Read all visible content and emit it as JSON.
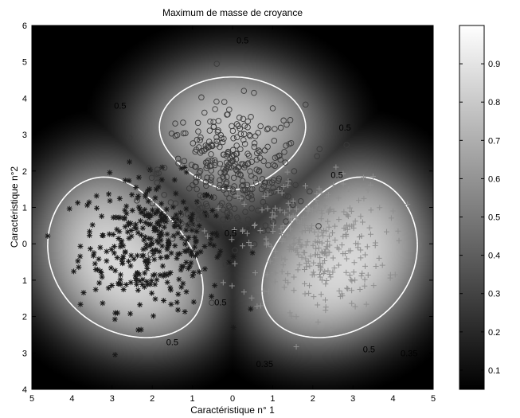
{
  "chart_data": {
    "type": "scatter",
    "title": "Maximum de masse de croyance",
    "xlabel": "Caractéristique n° 1",
    "ylabel": "Caractéristique n°2",
    "xlim": [
      -5,
      5
    ],
    "ylim": [
      -4,
      6
    ],
    "x_ticks": [
      -5,
      -4,
      -3,
      -2,
      -1,
      0,
      1,
      2,
      3,
      4,
      5
    ],
    "x_tick_labels": [
      "5",
      "4",
      "3",
      "2",
      "1",
      "0",
      "1",
      "2",
      "3",
      "4",
      "5"
    ],
    "y_ticks": [
      6,
      5,
      4,
      3,
      2,
      1,
      0,
      -1,
      -2,
      -3,
      -4
    ],
    "y_tick_labels": [
      "6",
      "5",
      "4",
      "3",
      "2",
      "1",
      "0",
      "1",
      "2",
      "3",
      "4"
    ],
    "background": "grayscale map of maximum belief mass (dark = low, white = high)",
    "grid": false,
    "colorbar": {
      "min": 0.05,
      "max": 1.0,
      "ticks": [
        0.1,
        0.2,
        0.3,
        0.4,
        0.5,
        0.6,
        0.7,
        0.8,
        0.9
      ],
      "tick_labels": [
        "0.1",
        "0.2",
        "0.3",
        "0.4",
        "0.5",
        "0.6",
        "0.7",
        "0.8",
        "0.9"
      ]
    },
    "class_centers": [
      {
        "marker": "asterisk",
        "color": "#1a1a1a",
        "center": [
          -2.0,
          0.0
        ],
        "spread": [
          0.9,
          0.9
        ],
        "count": 350
      },
      {
        "marker": "circle",
        "color": "#3a3a3a",
        "center": [
          0.0,
          2.0
        ],
        "spread": [
          0.9,
          0.9
        ],
        "count": 330
      },
      {
        "marker": "plus",
        "color": "#8e8e8e",
        "center": [
          2.0,
          0.0
        ],
        "spread": [
          0.9,
          0.9
        ],
        "count": 330
      }
    ],
    "contour_labels": [
      {
        "text": "0.5",
        "x": 0.25,
        "y": 5.6
      },
      {
        "text": "0.5",
        "x": -2.8,
        "y": 3.8
      },
      {
        "text": "0.5",
        "x": 2.8,
        "y": 3.2
      },
      {
        "text": "0.5",
        "x": 2.6,
        "y": 1.9
      },
      {
        "text": "0.5",
        "x": -0.05,
        "y": 0.3
      },
      {
        "text": "0.5",
        "x": -0.3,
        "y": -1.6
      },
      {
        "text": "0.5",
        "x": -1.5,
        "y": -2.7
      },
      {
        "text": "0.5",
        "x": 3.4,
        "y": -2.9
      },
      {
        "text": "0.35",
        "x": 0.8,
        "y": -3.3
      },
      {
        "text": "0.35",
        "x": 4.4,
        "y": -3.0
      }
    ]
  },
  "colors": {
    "contour": "#ffffff",
    "axes": "#000000"
  }
}
